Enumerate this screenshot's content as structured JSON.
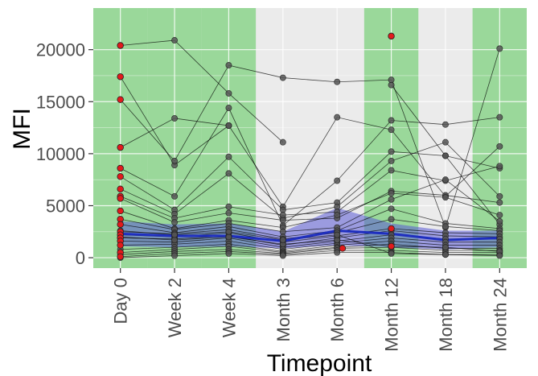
{
  "chart_data": {
    "type": "line",
    "title": "",
    "xlabel": "Timepoint",
    "ylabel": "MFI",
    "ylim": [
      -1000,
      24000
    ],
    "yticks": [
      0,
      5000,
      10000,
      15000,
      20000
    ],
    "categories": [
      "Day 0",
      "Week 2",
      "Week 4",
      "Month 3",
      "Month 6",
      "Month 12",
      "Month 18",
      "Month 24"
    ],
    "grid": true,
    "legend": "none",
    "colors": {
      "panel": "#ebebeb",
      "grid": "#ffffff",
      "shade": "#7fd27f",
      "line": "#000000",
      "point": "#555555",
      "highlight": "#e31a1c",
      "median": "#1f2fbf",
      "band": "#5a5ad6"
    },
    "shaded_categories": [
      "Day 0",
      "Week 2",
      "Week 4",
      "Month 12",
      "Month 24"
    ],
    "median": [
      2300,
      2100,
      2100,
      1600,
      2600,
      2300,
      1700,
      1900
    ],
    "band_low": [
      1100,
      1000,
      1100,
      900,
      1200,
      1000,
      800,
      1000
    ],
    "band_high": [
      3500,
      3200,
      3300,
      2500,
      4800,
      3300,
      2600,
      2600
    ],
    "series": [
      {
        "values": [
          20400,
          20900,
          15800,
          11100,
          null,
          21300,
          null,
          null
        ]
      },
      {
        "values": [
          17400,
          8900,
          12700,
          null,
          null,
          16600,
          9800,
          3200
        ]
      },
      {
        "values": [
          15200,
          9300,
          18500,
          17300,
          16900,
          17100,
          2900,
          20100
        ]
      },
      {
        "values": [
          10600,
          13400,
          12700,
          4900,
          13500,
          12300,
          5900,
          10700
        ]
      },
      {
        "values": [
          8600,
          5900,
          14400,
          3100,
          7400,
          13200,
          12800,
          13500
        ]
      },
      {
        "values": [
          7800,
          4600,
          9700,
          4600,
          5300,
          10200,
          9800,
          8600
        ]
      },
      {
        "values": [
          6600,
          4200,
          8100,
          3800,
          4900,
          9300,
          11100,
          5900
        ]
      },
      {
        "values": [
          5900,
          3800,
          4900,
          4100,
          4400,
          8400,
          7400,
          8800
        ]
      },
      {
        "values": [
          5700,
          3400,
          4300,
          3600,
          3800,
          6400,
          6000,
          5300
        ]
      },
      {
        "values": [
          4500,
          2800,
          3600,
          2900,
          4100,
          6200,
          5800,
          4100
        ]
      },
      {
        "values": [
          3700,
          2700,
          3300,
          2500,
          2900,
          5600,
          7500,
          3500
        ]
      },
      {
        "values": [
          3200,
          2400,
          3000,
          2000,
          2600,
          4700,
          3300,
          2800
        ]
      },
      {
        "values": [
          2500,
          2300,
          2700,
          1800,
          2400,
          3700,
          3000,
          2600
        ]
      },
      {
        "values": [
          2200,
          2000,
          2400,
          1500,
          2100,
          2800,
          2400,
          2300
        ]
      },
      {
        "values": [
          1900,
          1800,
          2100,
          1200,
          1900,
          2600,
          2100,
          2000
        ]
      },
      {
        "values": [
          1600,
          1500,
          1900,
          1000,
          1600,
          2200,
          1800,
          1800
        ]
      },
      {
        "values": [
          1200,
          1300,
          1600,
          800,
          1400,
          1900,
          1500,
          1500
        ]
      },
      {
        "values": [
          800,
          1000,
          1300,
          600,
          1200,
          1600,
          1200,
          1200
        ]
      },
      {
        "values": [
          500,
          800,
          1100,
          500,
          1000,
          1300,
          900,
          900
        ]
      },
      {
        "values": [
          300,
          600,
          800,
          400,
          900,
          1000,
          700,
          700
        ]
      },
      {
        "values": [
          100,
          400,
          600,
          300,
          700,
          700,
          500,
          500
        ]
      },
      {
        "values": [
          0,
          200,
          400,
          200,
          500,
          500,
          300,
          300
        ]
      },
      {
        "values": [
          2000,
          1700,
          2000,
          1300,
          1700,
          1100,
          1000,
          600
        ]
      },
      {
        "values": [
          2600,
          2200,
          2500,
          1700,
          2200,
          400,
          300,
          200
        ]
      }
    ],
    "highlighted_points": [
      {
        "category": "Day 0",
        "y": 20400
      },
      {
        "category": "Day 0",
        "y": 17400
      },
      {
        "category": "Day 0",
        "y": 15200
      },
      {
        "category": "Day 0",
        "y": 10600
      },
      {
        "category": "Day 0",
        "y": 8600
      },
      {
        "category": "Day 0",
        "y": 7800
      },
      {
        "category": "Day 0",
        "y": 6600
      },
      {
        "category": "Day 0",
        "y": 5900
      },
      {
        "category": "Day 0",
        "y": 5700
      },
      {
        "category": "Day 0",
        "y": 4500
      },
      {
        "category": "Day 0",
        "y": 3700
      },
      {
        "category": "Day 0",
        "y": 3200
      },
      {
        "category": "Day 0",
        "y": 2500
      },
      {
        "category": "Day 0",
        "y": 2200
      },
      {
        "category": "Day 0",
        "y": 1900
      },
      {
        "category": "Day 0",
        "y": 1600
      },
      {
        "category": "Day 0",
        "y": 1200
      },
      {
        "category": "Day 0",
        "y": 500
      },
      {
        "category": "Day 0",
        "y": 100
      },
      {
        "category": "Month 12",
        "y": 21300
      },
      {
        "category": "Month 12",
        "y": 2800
      },
      {
        "category": "Month 12",
        "y": 1100
      },
      {
        "category": "Month 6",
        "y": 900,
        "offset": 0.6
      }
    ]
  }
}
